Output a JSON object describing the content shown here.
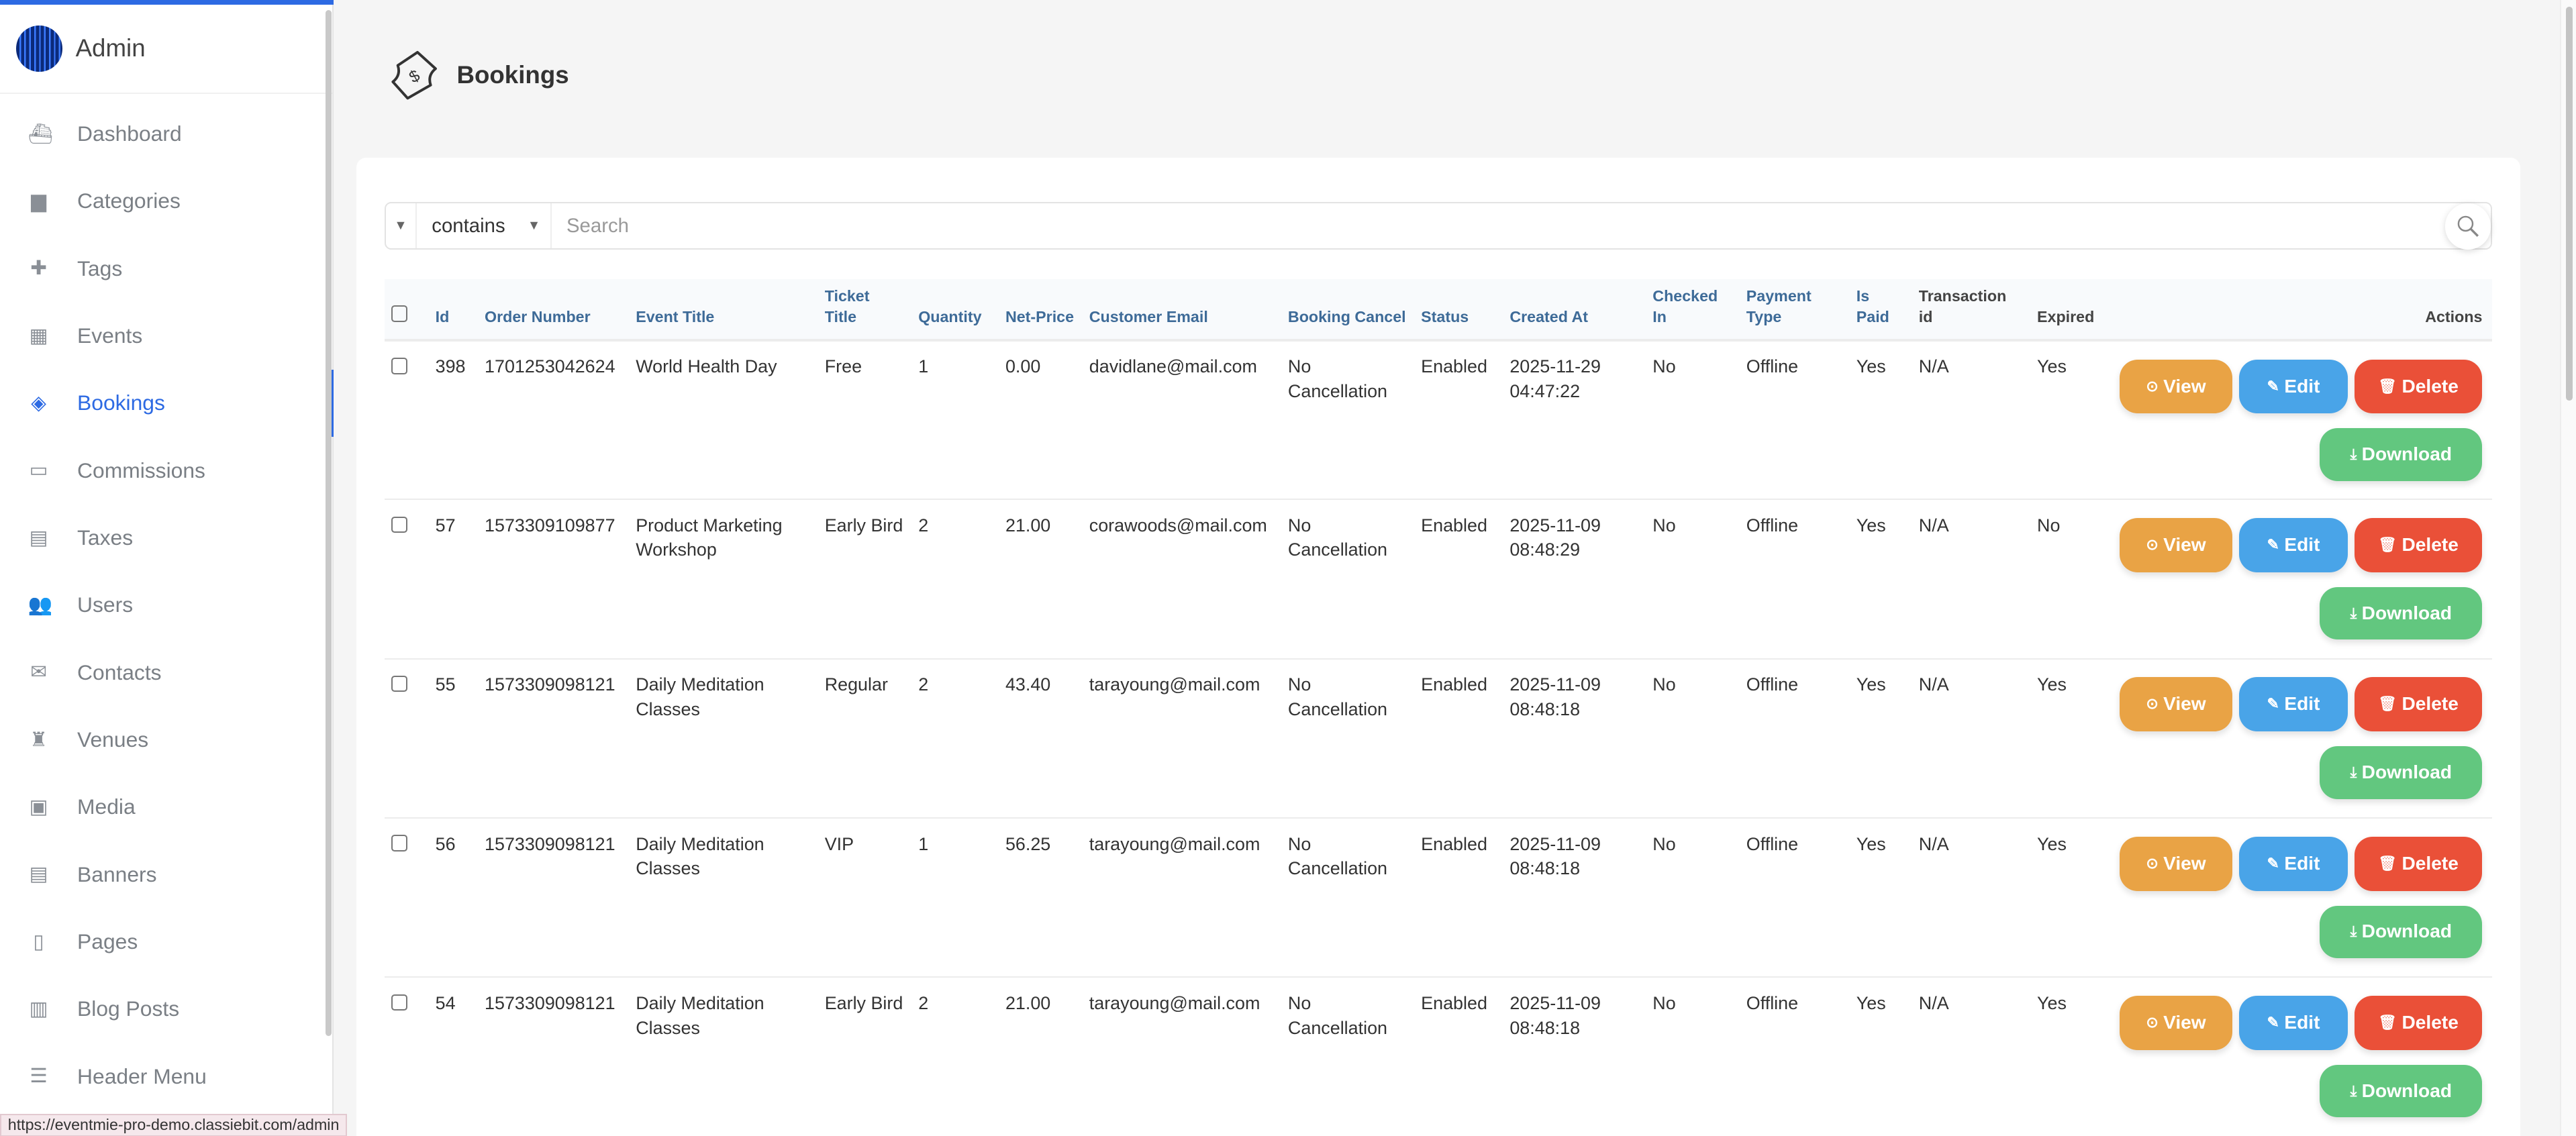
{
  "sidebar": {
    "user": "Admin",
    "items": [
      {
        "label": "Dashboard",
        "icon": "ship-icon",
        "glyph": "⛴"
      },
      {
        "label": "Categories",
        "icon": "folder-icon",
        "glyph": "▆"
      },
      {
        "label": "Tags",
        "icon": "puzzle-icon",
        "glyph": "✚"
      },
      {
        "label": "Events",
        "icon": "calendar-icon",
        "glyph": "▦"
      },
      {
        "label": "Bookings",
        "icon": "ticket-icon",
        "glyph": "◈",
        "active": true
      },
      {
        "label": "Commissions",
        "icon": "wallet-icon",
        "glyph": "▭"
      },
      {
        "label": "Taxes",
        "icon": "receipt-icon",
        "glyph": "▤"
      },
      {
        "label": "Users",
        "icon": "users-icon",
        "glyph": "👥"
      },
      {
        "label": "Contacts",
        "icon": "envelope-icon",
        "glyph": "✉"
      },
      {
        "label": "Venues",
        "icon": "tower-icon",
        "glyph": "♜"
      },
      {
        "label": "Media",
        "icon": "image-icon",
        "glyph": "▣"
      },
      {
        "label": "Banners",
        "icon": "banner-icon",
        "glyph": "▤"
      },
      {
        "label": "Pages",
        "icon": "page-icon",
        "glyph": "▯"
      },
      {
        "label": "Blog Posts",
        "icon": "blog-icon",
        "glyph": "▥"
      },
      {
        "label": "Header Menu",
        "icon": "list-icon",
        "glyph": "☰"
      }
    ]
  },
  "page": {
    "title": "Bookings"
  },
  "search": {
    "filter": "contains",
    "placeholder": "Search"
  },
  "table": {
    "headers": [
      {
        "label": "Id"
      },
      {
        "label": "Order Number"
      },
      {
        "label": "Event Title"
      },
      {
        "label": "Ticket Title"
      },
      {
        "label": "Quantity"
      },
      {
        "label": "Net-Price"
      },
      {
        "label": "Customer Email"
      },
      {
        "label": "Booking Cancel"
      },
      {
        "label": "Status"
      },
      {
        "label": "Created At"
      },
      {
        "label": "Checked In"
      },
      {
        "label": "Payment Type"
      },
      {
        "label": "Is Paid"
      },
      {
        "label": "Transaction id",
        "plain": true
      },
      {
        "label": "Expired",
        "plain": true
      },
      {
        "label": "Actions",
        "plain": true
      }
    ],
    "rows": [
      [
        "398",
        "1701253042624",
        "World Health Day",
        "Free",
        "1",
        "0.00",
        "davidlane@mail.com",
        "No Cancellation",
        "Enabled",
        "2025-11-29 04:47:22",
        "No",
        "Offline",
        "Yes",
        "N/A",
        "Yes"
      ],
      [
        "57",
        "1573309109877",
        "Product Marketing Workshop",
        "Early Bird",
        "2",
        "21.00",
        "corawoods@mail.com",
        "No Cancellation",
        "Enabled",
        "2025-11-09 08:48:29",
        "No",
        "Offline",
        "Yes",
        "N/A",
        "No"
      ],
      [
        "55",
        "1573309098121",
        "Daily Meditation Classes",
        "Regular",
        "2",
        "43.40",
        "tarayoung@mail.com",
        "No Cancellation",
        "Enabled",
        "2025-11-09 08:48:18",
        "No",
        "Offline",
        "Yes",
        "N/A",
        "Yes"
      ],
      [
        "56",
        "1573309098121",
        "Daily Meditation Classes",
        "VIP",
        "1",
        "56.25",
        "tarayoung@mail.com",
        "No Cancellation",
        "Enabled",
        "2025-11-09 08:48:18",
        "No",
        "Offline",
        "Yes",
        "N/A",
        "Yes"
      ],
      [
        "54",
        "1573309098121",
        "Daily Meditation Classes",
        "Early Bird",
        "2",
        "21.00",
        "tarayoung@mail.com",
        "No Cancellation",
        "Enabled",
        "2025-11-09 08:48:18",
        "No",
        "Offline",
        "Yes",
        "N/A",
        "Yes"
      ]
    ],
    "actions": {
      "view": "View",
      "edit": "Edit",
      "delete": "Delete",
      "download": "Download"
    }
  },
  "statusbar": {
    "url": "https://eventmie-pro-demo.classiebit.com/admin"
  },
  "colors": {
    "accent": "#2d6ae3",
    "view": "#e9a345",
    "edit": "#49a4e8",
    "delete": "#ea5038",
    "download": "#62c77f"
  }
}
